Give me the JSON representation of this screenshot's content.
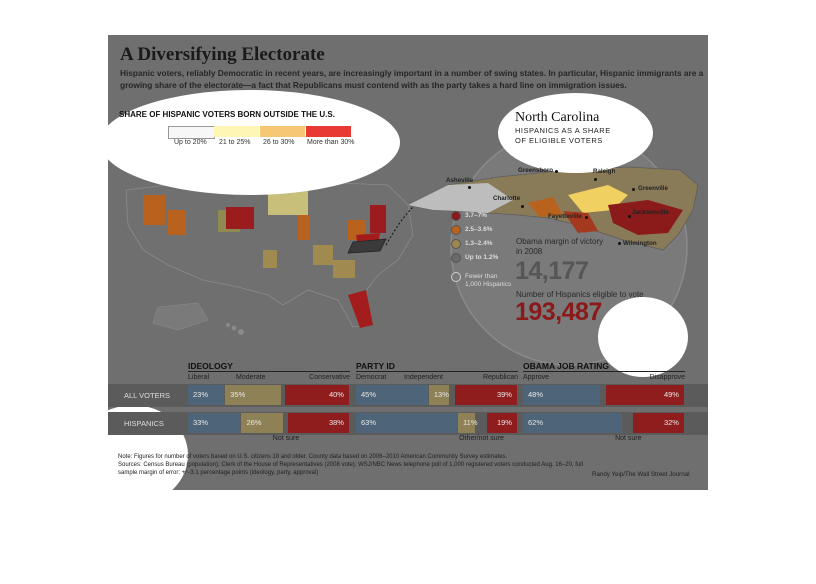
{
  "title": "A Diversifying Electorate",
  "dek": "Hispanic voters, reliably Democratic in recent years, are increasingly important in a number of swing states. In particular, Hispanic immigrants are a growing share of the electorate—a fact that Republicans must contend with as the party takes a hard line on immigration issues.",
  "map": {
    "legend_title": "SHARE OF HISPANIC VOTERS BORN OUTSIDE THE U.S.",
    "legend": [
      {
        "label": "Up to 20%",
        "color": "#f7f7f7"
      },
      {
        "label": "21 to 25%",
        "color": "#fdf6b4"
      },
      {
        "label": "26 to 30%",
        "color": "#f7c873"
      },
      {
        "label": "More than 30%",
        "color": "#e83a33"
      }
    ]
  },
  "inset": {
    "title": "North Carolina",
    "subtitle": "HISPANICS AS A SHARE OF ELIGIBLE VOTERS",
    "cities": [
      "Asheville",
      "Greensboro",
      "Raleigh",
      "Greenville",
      "Charlotte",
      "Fayetteville",
      "Jacksonville",
      "Wilmington"
    ],
    "legend": [
      {
        "label": "3.7–7%",
        "color": "#8b1a1a"
      },
      {
        "label": "2.5–3.6%",
        "color": "#b8621e"
      },
      {
        "label": "1.3–2.4%",
        "color": "#9b8650"
      },
      {
        "label": "Up to 1.2%",
        "color": "#6a6a6a"
      },
      {
        "label": "Fewer than 1,000 Hispanics",
        "color": "#7a7a7a"
      }
    ],
    "margin_label": "Obama margin of victory in 2008",
    "margin_value": "14,177",
    "eligible_label": "Number of Hispanics eligible to vote",
    "eligible_value": "193,487"
  },
  "chart_data": [
    {
      "type": "bar",
      "title": "IDEOLOGY",
      "categories": [
        "Liberal",
        "Moderate",
        "Conservative"
      ],
      "series": [
        {
          "name": "ALL VOTERS",
          "values": [
            23,
            35,
            40
          ]
        },
        {
          "name": "HISPANICS",
          "values": [
            33,
            26,
            38
          ]
        }
      ],
      "remainder_label": "Not sure",
      "unit": "%"
    },
    {
      "type": "bar",
      "title": "PARTY ID",
      "categories": [
        "Democrat",
        "Independent",
        "Republican"
      ],
      "series": [
        {
          "name": "ALL VOTERS",
          "values": [
            45,
            13,
            39
          ]
        },
        {
          "name": "HISPANICS",
          "values": [
            63,
            11,
            19
          ]
        }
      ],
      "remainder_label": "Other/not sure",
      "unit": "%"
    },
    {
      "type": "bar",
      "title": "OBAMA JOB RATING",
      "categories": [
        "Approve",
        "Disapprove"
      ],
      "series": [
        {
          "name": "ALL VOTERS",
          "values": [
            48,
            49
          ]
        },
        {
          "name": "HISPANICS",
          "values": [
            62,
            32
          ]
        }
      ],
      "remainder_label": "Not sure",
      "unit": "%"
    }
  ],
  "row_labels": [
    "ALL VOTERS",
    "HISPANICS"
  ],
  "note": "Note: Figures for number of voters based on U.S. citizens 18 and older. County data based on 2006–2010 American Community Survey estimates.",
  "sources": "Sources: Census Bureau (population); Clerk of the House of Representatives (2008 vote); WSJ/NBC News telephone poll of 1,000 registered voters conducted Aug. 16–20, full sample margin of error: +/−3.1 percentage points (ideology, party, approval)",
  "credit": "Randy Yeip/The Wall Street Journal",
  "colors": {
    "liberal_dem_approve": "#4e6478",
    "moderate_independent": "#8f8156",
    "conservative_republican_disapprove": "#8f1d1d",
    "frame": "#6f6f6f"
  }
}
